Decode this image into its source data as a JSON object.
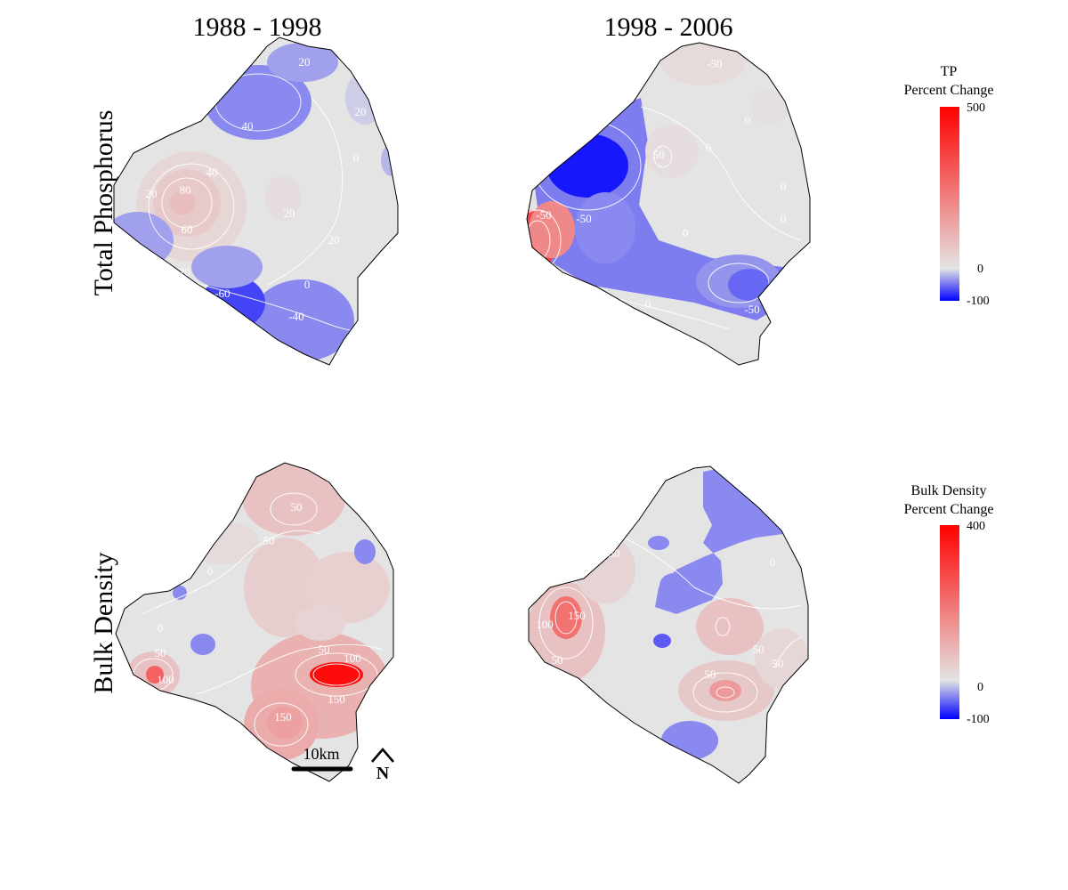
{
  "columns": [
    "1988 - 1998",
    "1998 - 2006"
  ],
  "rows": [
    "Total Phosphorus",
    "Bulk Density"
  ],
  "legends": [
    {
      "title_line1": "TP",
      "title_line2": "Percent Change",
      "max": "500",
      "mid": "0",
      "min": "-100",
      "min_value": -100,
      "mid_value": 0,
      "max_value": 500
    },
    {
      "title_line1": "Bulk Density",
      "title_line2": "Percent Change",
      "max": "400",
      "mid": "0",
      "min": "-100",
      "min_value": -100,
      "mid_value": 0,
      "max_value": 400
    }
  ],
  "colors": {
    "neutral": "#e4e4e4",
    "low": "#0000ff",
    "high": "#ff0000",
    "contour": "#ffffff",
    "outline": "#000000"
  },
  "scale_bar": {
    "label": "10km"
  },
  "north_arrow": {
    "label": "N",
    "icon": "north-arrow-icon"
  },
  "panels": [
    {
      "id": "tp-1988-1998",
      "labels": [
        "40",
        "20",
        "20",
        "40",
        "80",
        "20",
        "60",
        "20",
        "0",
        "20",
        "0",
        "-20",
        "0",
        "-60",
        "-40"
      ],
      "patches": [
        {
          "value": -40
        },
        {
          "value": -30
        },
        {
          "value": -10
        },
        {
          "value": -20
        },
        {
          "value": 30
        },
        {
          "value": 60
        },
        {
          "value": 85
        },
        {
          "value": 15
        },
        {
          "value": -30
        },
        {
          "value": -40
        },
        {
          "value": -70
        },
        {
          "value": -30
        }
      ]
    },
    {
      "id": "tp-1998-2006",
      "labels": [
        "-50",
        "0",
        "-50",
        "0",
        "-50",
        "0",
        "0",
        "0",
        "50",
        "-50",
        "0"
      ],
      "patches": [
        {
          "value": 20
        },
        {
          "value": -45
        },
        {
          "value": -90
        },
        {
          "value": 350
        },
        {
          "value": 200
        },
        {
          "value": -40
        },
        {
          "value": -35
        },
        {
          "value": -55
        },
        {
          "value": -90
        },
        {
          "value": 15
        },
        {
          "value": 10
        }
      ]
    },
    {
      "id": "bd-1988-1998",
      "labels": [
        "50",
        "50",
        "0",
        "0",
        "50",
        "100",
        "50",
        "150",
        "100",
        "150"
      ],
      "patches": [
        {
          "value": 60
        },
        {
          "value": 40
        },
        {
          "value": 35
        },
        {
          "value": 15
        },
        {
          "value": -40
        },
        {
          "value": -40
        },
        {
          "value": -40
        },
        {
          "value": 60
        },
        {
          "value": 230
        },
        {
          "value": 90
        },
        {
          "value": 100
        },
        {
          "value": 380
        },
        {
          "value": 120
        },
        {
          "value": 30
        }
      ]
    },
    {
      "id": "bd-1998-2006",
      "labels": [
        "50",
        "0",
        "100",
        "150",
        "50",
        "50",
        "50",
        "50"
      ],
      "patches": [
        {
          "value": -40
        },
        {
          "value": -40
        },
        {
          "value": -60
        },
        {
          "value": -40
        },
        {
          "value": -40
        },
        {
          "value": 60
        },
        {
          "value": 200
        },
        {
          "value": 50
        },
        {
          "value": 60
        },
        {
          "value": 130
        },
        {
          "value": 25
        },
        {
          "value": 30
        }
      ]
    }
  ]
}
